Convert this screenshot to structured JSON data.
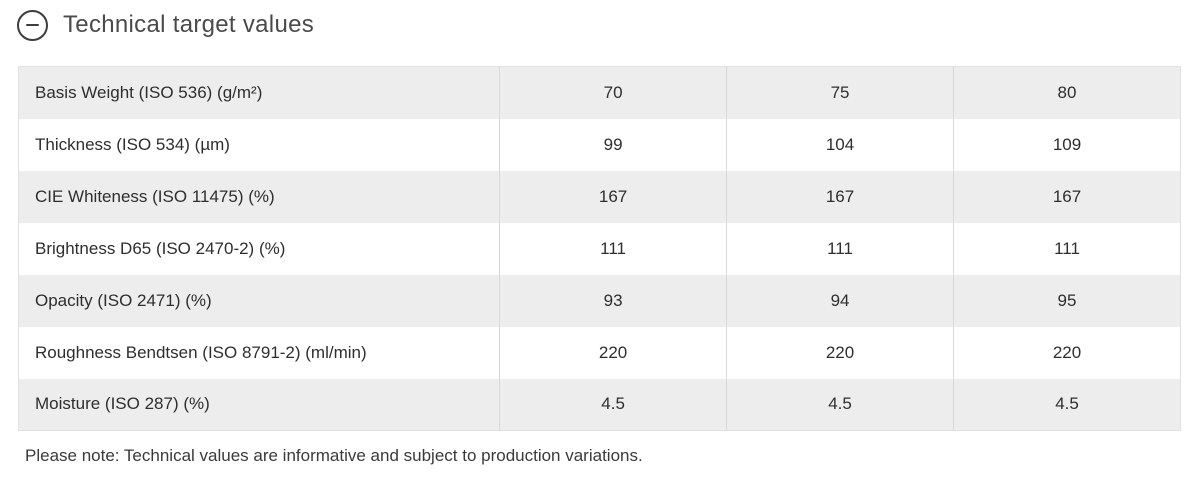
{
  "section": {
    "title": "Technical target values",
    "collapse_icon": "minus-circle-icon",
    "state": "expanded"
  },
  "table": {
    "rows": [
      {
        "label": "Basis Weight (ISO 536) (g/m²)",
        "values": [
          "70",
          "75",
          "80"
        ]
      },
      {
        "label": "Thickness (ISO 534) (µm)",
        "values": [
          "99",
          "104",
          "109"
        ]
      },
      {
        "label": "CIE Whiteness (ISO 11475) (%)",
        "values": [
          "167",
          "167",
          "167"
        ]
      },
      {
        "label": "Brightness D65 (ISO 2470-2) (%)",
        "values": [
          "111",
          "111",
          "111"
        ]
      },
      {
        "label": "Opacity (ISO 2471) (%)",
        "values": [
          "93",
          "94",
          "95"
        ]
      },
      {
        "label": "Roughness Bendtsen (ISO 8791-2) (ml/min)",
        "values": [
          "220",
          "220",
          "220"
        ]
      },
      {
        "label": "Moisture (ISO 287) (%)",
        "values": [
          "4.5",
          "4.5",
          "4.5"
        ]
      }
    ]
  },
  "footer": {
    "note": "Please note: Technical values are informative and subject to production variations."
  },
  "colors": {
    "row_alt_bg": "#ededed",
    "row_bg": "#ffffff",
    "column_divider": "#d8d8d8",
    "table_border": "#e1e1e1",
    "text": "#2e2e2e",
    "title_text": "#4a4a4a",
    "icon_stroke": "#3d3d3d"
  }
}
